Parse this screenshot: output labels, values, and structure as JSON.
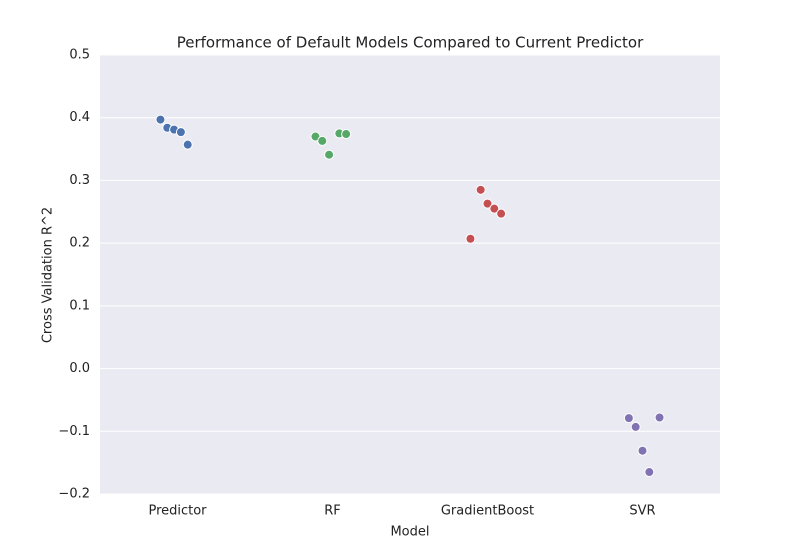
{
  "chart_data": {
    "type": "strip",
    "title": "Performance of Default Models Compared to Current Predictor",
    "xlabel": "Model",
    "ylabel": "Cross Validation R^2",
    "categories": [
      "Predictor",
      "RF",
      "GradientBoost",
      "SVR"
    ],
    "colors": [
      "#4c72b0",
      "#55a868",
      "#c44e52",
      "#8172b2"
    ],
    "values": [
      [
        0.397,
        0.384,
        0.381,
        0.377,
        0.357
      ],
      [
        0.375,
        0.374,
        0.37,
        0.363,
        0.341
      ],
      [
        0.285,
        0.263,
        0.255,
        0.247,
        0.207
      ],
      [
        -0.078,
        -0.079,
        -0.093,
        -0.131,
        -0.165
      ]
    ],
    "ylim": [
      -0.2,
      0.5
    ],
    "yticks": [
      {
        "value": -0.2,
        "label": "−0.2"
      },
      {
        "value": -0.1,
        "label": "−0.1"
      },
      {
        "value": 0,
        "label": "0.0"
      },
      0.1,
      0.2,
      0.3,
      0.4,
      0.5
    ],
    "grid": true
  }
}
